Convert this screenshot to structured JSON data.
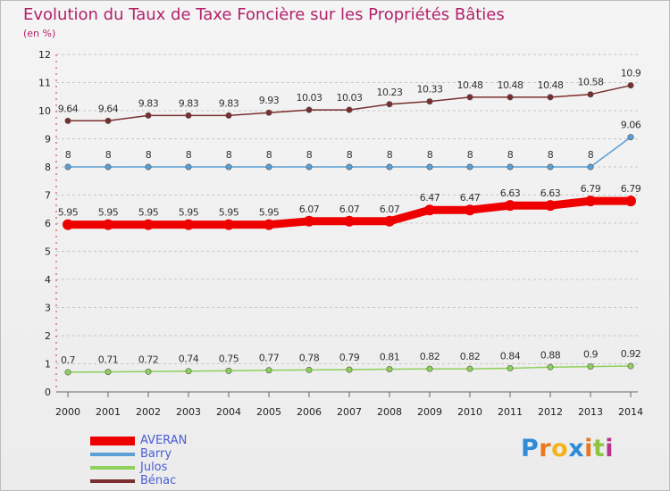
{
  "chart_data": {
    "type": "line",
    "title": "Evolution du Taux de Taxe Foncière sur les Propriétés Bâties",
    "subtitle": "(en %)",
    "xlabel": "",
    "ylabel": "",
    "ylim": [
      0,
      12
    ],
    "y_ticks": [
      "0",
      "1",
      "2",
      "3",
      "4",
      "5",
      "6",
      "7",
      "8",
      "9",
      "10",
      "11",
      "12"
    ],
    "categories": [
      "2000",
      "2001",
      "2002",
      "2003",
      "2004",
      "2005",
      "2006",
      "2007",
      "2008",
      "2009",
      "2010",
      "2011",
      "2012",
      "2013",
      "2014"
    ],
    "grid": "horizontal dashed",
    "legend_position": "bottom-left",
    "series": [
      {
        "name": "AVERAN",
        "color": "#ee0000",
        "values": [
          5.95,
          5.95,
          5.95,
          5.95,
          5.95,
          5.95,
          6.07,
          6.07,
          6.07,
          6.47,
          6.47,
          6.63,
          6.63,
          6.79,
          6.79
        ],
        "labels": [
          "5.95",
          "5.95",
          "5.95",
          "5.95",
          "5.95",
          "5.95",
          "6.07",
          "6.07",
          "6.07",
          "6.47",
          "6.47",
          "6.63",
          "6.63",
          "6.79",
          "6.79"
        ]
      },
      {
        "name": "Barry",
        "color": "#5a9fd6",
        "values": [
          8,
          8,
          8,
          8,
          8,
          8,
          8,
          8,
          8,
          8,
          8,
          8,
          8,
          8,
          9.06
        ],
        "labels": [
          "8",
          "8",
          "8",
          "8",
          "8",
          "8",
          "8",
          "8",
          "8",
          "8",
          "8",
          "8",
          "8",
          "8",
          "9.06"
        ]
      },
      {
        "name": "Julos",
        "color": "#8ed05a",
        "values": [
          0.7,
          0.71,
          0.72,
          0.74,
          0.75,
          0.77,
          0.78,
          0.79,
          0.81,
          0.82,
          0.82,
          0.84,
          0.88,
          0.9,
          0.92
        ],
        "labels": [
          "0.7",
          "0.71",
          "0.72",
          "0.74",
          "0.75",
          "0.77",
          "0.78",
          "0.79",
          "0.81",
          "0.82",
          "0.82",
          "0.84",
          "0.88",
          "0.9",
          "0.92"
        ]
      },
      {
        "name": "Bénac",
        "color": "#7a2e2e",
        "values": [
          9.64,
          9.64,
          9.83,
          9.83,
          9.83,
          9.93,
          10.03,
          10.03,
          10.23,
          10.33,
          10.48,
          10.48,
          10.48,
          10.58,
          10.9
        ],
        "labels": [
          "9.64",
          "9.64",
          "9.83",
          "9.83",
          "9.83",
          "9.93",
          "10.03",
          "10.03",
          "10.23",
          "10.33",
          "10.48",
          "10.48",
          "10.48",
          "10.58",
          "10.9"
        ]
      }
    ]
  },
  "brand": {
    "letters": [
      "P",
      "r",
      "o",
      "x",
      "i",
      "t",
      "i"
    ],
    "colors": [
      "#2f8ad8",
      "#e8771f",
      "#f2b31c",
      "#2f8ad8",
      "#e8771f",
      "#8cc63f",
      "#b8348b"
    ]
  }
}
